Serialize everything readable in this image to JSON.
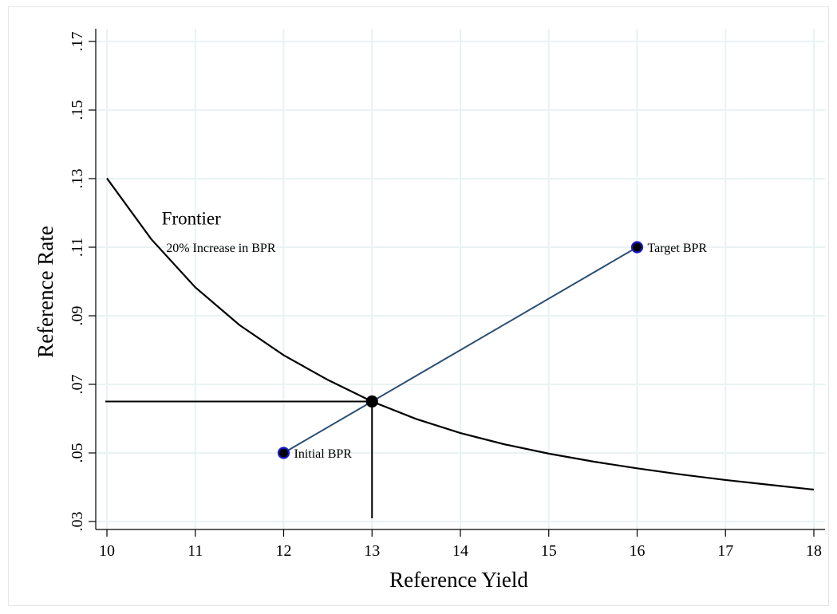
{
  "chart_data": {
    "type": "line",
    "title": "",
    "xlabel": "Reference Yield",
    "ylabel": "Reference Rate",
    "xlim": [
      10,
      18
    ],
    "ylim": [
      0.03,
      0.17
    ],
    "grid": true,
    "x_ticks": [
      10,
      11,
      12,
      13,
      14,
      15,
      16,
      17,
      18
    ],
    "x_tick_labels": [
      "10",
      "11",
      "12",
      "13",
      "14",
      "15",
      "16",
      "17",
      "18"
    ],
    "y_ticks": [
      0.03,
      0.05,
      0.07,
      0.09,
      0.11,
      0.13,
      0.15,
      0.17
    ],
    "y_tick_labels": [
      ".03",
      ".05",
      ".07",
      ".09",
      ".11",
      ".13",
      ".15",
      ".17"
    ],
    "frontier_curve": {
      "x": [
        10,
        10.5,
        11,
        11.5,
        12,
        12.5,
        13,
        13.5,
        14,
        14.5,
        15,
        15.5,
        16,
        16.5,
        17,
        17.5,
        18
      ],
      "y": [
        0.1301,
        0.1124,
        0.0983,
        0.0873,
        0.0785,
        0.0713,
        0.065,
        0.0599,
        0.0558,
        0.0525,
        0.0498,
        0.0475,
        0.0455,
        0.0437,
        0.0421,
        0.0407,
        0.0393
      ],
      "color": "#000000"
    },
    "bpr_line": {
      "x": [
        12,
        16
      ],
      "y": [
        0.05,
        0.11
      ],
      "color": "#2a4f74"
    },
    "intersection": {
      "x": 13,
      "y": 0.065
    },
    "points": [
      {
        "x": 12,
        "y": 0.05,
        "label": "Initial BPR",
        "fill": "#000000",
        "ring": "#1a1acc"
      },
      {
        "x": 16,
        "y": 0.11,
        "label": "Target BPR",
        "fill": "#000000",
        "ring": "#1a1acc"
      },
      {
        "x": 13,
        "y": 0.065,
        "label": "",
        "fill": "#000000",
        "ring": "#000000"
      }
    ],
    "annotations": [
      {
        "text": "Frontier",
        "x": 10.62,
        "y": 0.118
      },
      {
        "text": "20% Increase in BPR",
        "x": 10.67,
        "y": 0.11
      }
    ],
    "grid_color": "#eaf2f3"
  }
}
